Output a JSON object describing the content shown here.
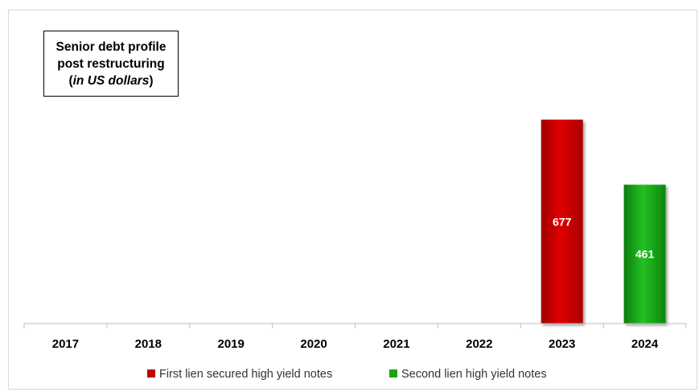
{
  "chart_data": {
    "type": "bar",
    "title_lines": [
      "Senior debt profile",
      "post restructuring"
    ],
    "title_unit_open": "(",
    "title_unit": "in US dollars",
    "title_unit_close": ")",
    "categories": [
      "2017",
      "2018",
      "2019",
      "2020",
      "2021",
      "2022",
      "2023",
      "2024"
    ],
    "series": [
      {
        "name": "First lien secured high yield notes",
        "color": "#c00000",
        "values": [
          null,
          null,
          null,
          null,
          null,
          null,
          677,
          null
        ]
      },
      {
        "name": "Second lien high yield notes",
        "color": "#18a418",
        "values": [
          null,
          null,
          null,
          null,
          null,
          null,
          null,
          461
        ]
      }
    ],
    "ylim": [
      0,
      700
    ],
    "grid": false,
    "legend_position": "bottom"
  }
}
